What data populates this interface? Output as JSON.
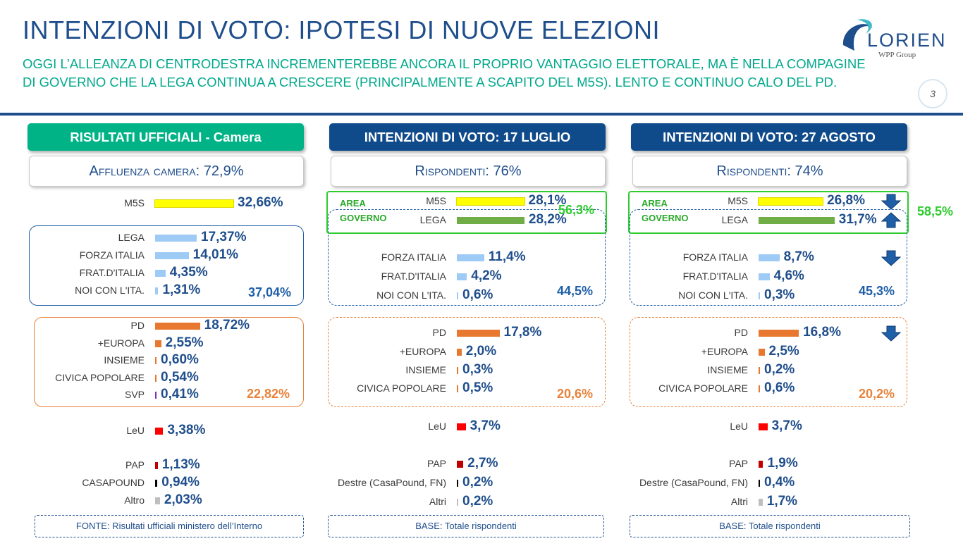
{
  "header": {
    "title": "INTENZIONI DI VOTO: IPOTESI DI NUOVE ELEZIONI",
    "subtitle_line1": "OGGI L’ALLEANZA DI CENTRODESTRA INCREMENTEREBBE ANCORA IL PROPRIO VANTAGGIO ELETTORALE, MA È NELLA COMPAGINE",
    "subtitle_line2": "DI GOVERNO CHE LA LEGA CONTINUA A CRESCERE (PRINCIPALMENTE A SCAPITO DEL M5S). LENTO E CONTINUO CALO DEL PD.",
    "page_number": "3",
    "logo_word": "LORIEN",
    "logo_sub": "WPP Group"
  },
  "colors": {
    "title": "#1f4e8c",
    "subtitle": "#00a88c",
    "head_official": "#00b386",
    "head_poll": "#0f4a8a",
    "area_governo": "#2ecc2e",
    "centrodestra": "#1f5fa8",
    "centrosinistra": "#e8823a"
  },
  "chart_data": [
    {
      "type": "bar",
      "title": "RISULTATI UFFICIALI - Camera",
      "subtitle_label": "Affluenza camera:",
      "subtitle_value": "72,9%",
      "footer": "FONTE: Risultati ufficiali ministero dell’Interno",
      "categories": [
        "M5S",
        "LEGA",
        "FORZA ITALIA",
        "FRAT.D'ITALIA",
        "NOI CON L'ITA.",
        "PD",
        "+EUROPA",
        "INSIEME",
        "CIVICA POPOLARE",
        "SVP",
        "LeU",
        "PAP",
        "CASAPOUND",
        "Altro"
      ],
      "values": [
        32.66,
        17.37,
        14.01,
        4.35,
        1.31,
        18.72,
        2.55,
        0.6,
        0.54,
        0.41,
        3.38,
        1.13,
        0.94,
        2.03
      ],
      "labels": [
        "32,66%",
        "17,37%",
        "14,01%",
        "4,35%",
        "1,31%",
        "18,72%",
        "2,55%",
        "0,60%",
        "0,54%",
        "0,41%",
        "3,38%",
        "1,13%",
        "0,94%",
        "2,03%"
      ],
      "bar_colors": [
        "#ffff00",
        "#9ecbf5",
        "#9ecbf5",
        "#9ecbf5",
        "#9ecbf5",
        "#e8782f",
        "#e8782f",
        "#e8782f",
        "#e8782f",
        "#7b2fb5",
        "#ff0000",
        "#c00000",
        "#000000",
        "#bfbfbf"
      ],
      "group_totals": {
        "centrodestra": "37,04%",
        "centrosinistra": "22,82%"
      }
    },
    {
      "type": "bar",
      "title": "INTENZIONI DI VOTO: 17 LUGLIO",
      "subtitle_label": "Rispondenti:",
      "subtitle_value": "76%",
      "footer": "BASE: Totale rispondenti",
      "categories": [
        "M5S",
        "LEGA",
        "FORZA ITALIA",
        "FRAT.D'ITALIA",
        "NOI CON L'ITA.",
        "PD",
        "+EUROPA",
        "INSIEME",
        "CIVICA POPOLARE",
        "LeU",
        "PAP",
        "Destre (CasaPound, FN)",
        "Altri"
      ],
      "values": [
        28.1,
        28.2,
        11.4,
        4.2,
        0.6,
        17.8,
        2.0,
        0.3,
        0.5,
        3.7,
        2.7,
        0.2,
        0.2
      ],
      "labels": [
        "28,1%",
        "28,2%",
        "11,4%",
        "4,2%",
        "0,6%",
        "17,8%",
        "2,0%",
        "0,3%",
        "0,5%",
        "3,7%",
        "2,7%",
        "0,2%",
        "0,2%"
      ],
      "bar_colors": [
        "#ffff00",
        "#70ad47",
        "#9ecbf5",
        "#9ecbf5",
        "#9ecbf5",
        "#e8782f",
        "#e8782f",
        "#e8782f",
        "#e8782f",
        "#ff0000",
        "#c00000",
        "#000000",
        "#bfbfbf"
      ],
      "area_governo_label1": "AREA",
      "area_governo_label2": "GOVERNO",
      "group_totals": {
        "area_governo": "56,3%",
        "centrodestra": "44,5%",
        "centrosinistra": "20,6%"
      }
    },
    {
      "type": "bar",
      "title": "INTENZIONI DI VOTO: 27 AGOSTO",
      "subtitle_label": "Rispondenti:",
      "subtitle_value": "74%",
      "footer": "BASE: Totale rispondenti",
      "categories": [
        "M5S",
        "LEGA",
        "FORZA ITALIA",
        "FRAT.D'ITALIA",
        "NOI CON L'ITA.",
        "PD",
        "+EUROPA",
        "INSIEME",
        "CIVICA POPOLARE",
        "LeU",
        "PAP",
        "Destre (CasaPound, FN)",
        "Altri"
      ],
      "values": [
        26.8,
        31.7,
        8.7,
        4.6,
        0.3,
        16.8,
        2.5,
        0.2,
        0.6,
        3.7,
        1.9,
        0.4,
        1.7
      ],
      "labels": [
        "26,8%",
        "31,7%",
        "8,7%",
        "4,6%",
        "0,3%",
        "16,8%",
        "2,5%",
        "0,2%",
        "0,6%",
        "3,7%",
        "1,9%",
        "0,4%",
        "1,7%"
      ],
      "bar_colors": [
        "#ffff00",
        "#70ad47",
        "#9ecbf5",
        "#9ecbf5",
        "#9ecbf5",
        "#e8782f",
        "#e8782f",
        "#e8782f",
        "#e8782f",
        "#ff0000",
        "#c00000",
        "#000000",
        "#bfbfbf"
      ],
      "area_governo_label1": "AREA",
      "area_governo_label2": "GOVERNO",
      "group_totals": {
        "area_governo": "58,5%",
        "centrodestra": "45,3%",
        "centrosinistra": "20,2%"
      },
      "trend_arrows": {
        "M5S": "down",
        "LEGA": "up",
        "FORZA ITALIA": "down",
        "PD": "down"
      }
    }
  ]
}
